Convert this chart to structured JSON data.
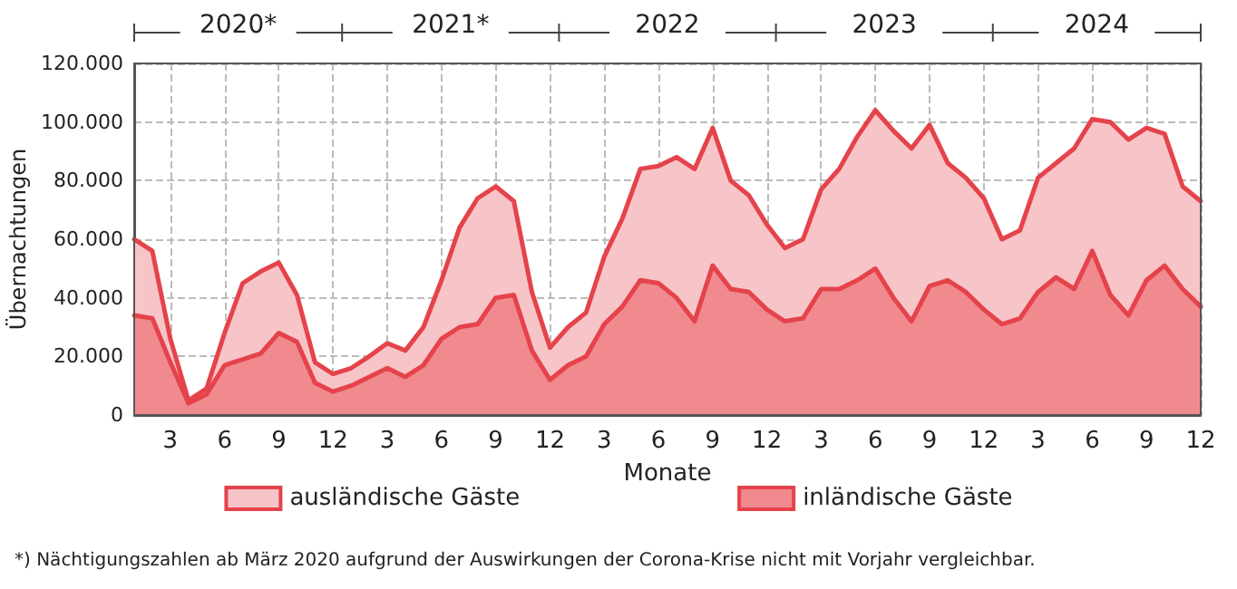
{
  "chart_data": {
    "type": "area",
    "ylabel": "Übernachtungen",
    "xlabel": "Monate",
    "categories": [
      null,
      null,
      "3",
      null,
      null,
      "6",
      null,
      null,
      "9",
      null,
      null,
      "12",
      null,
      null,
      "3",
      null,
      null,
      "6",
      null,
      null,
      "9",
      null,
      null,
      "12",
      null,
      null,
      "3",
      null,
      null,
      "6",
      null,
      null,
      "9",
      null,
      null,
      "12",
      null,
      null,
      "3",
      null,
      null,
      "6",
      null,
      null,
      "9",
      null,
      null,
      "12",
      null,
      null,
      "3",
      null,
      null,
      "6",
      null,
      null,
      "9",
      null,
      null,
      "12"
    ],
    "series": [
      {
        "name": "ausländische Gäste",
        "color": "#f7c5c8",
        "values": [
          60000,
          56000,
          26000,
          5000,
          9000,
          28000,
          45000,
          49000,
          52000,
          41000,
          18000,
          14000,
          16000,
          20000,
          24500,
          22000,
          30000,
          46000,
          64000,
          74000,
          78000,
          73000,
          42000,
          23000,
          30000,
          35000,
          54000,
          67000,
          84000,
          85000,
          88000,
          84000,
          98000,
          80000,
          75000,
          65000,
          57000,
          60000,
          77000,
          84000,
          95000,
          104000,
          97000,
          91000,
          99000,
          86000,
          81000,
          74000,
          60000,
          63000,
          81000,
          86000,
          91000,
          101000,
          100000,
          94000,
          98000,
          96000,
          78000,
          73000
        ]
      },
      {
        "name": "inländische Gäste",
        "color": "#f08a8e",
        "values": [
          34000,
          33000,
          18000,
          4000,
          7000,
          17000,
          19000,
          21000,
          28000,
          25000,
          11000,
          8000,
          10000,
          13000,
          16000,
          13000,
          17000,
          26000,
          30000,
          31000,
          40000,
          41000,
          22000,
          12000,
          17000,
          20000,
          31000,
          37000,
          46000,
          45000,
          40000,
          32000,
          51000,
          43000,
          42000,
          36000,
          32000,
          33000,
          43000,
          43000,
          46000,
          50000,
          40000,
          32000,
          44000,
          46000,
          42000,
          36000,
          31000,
          33000,
          42000,
          47000,
          43000,
          56000,
          41000,
          34000,
          46000,
          51000,
          43000,
          37000
        ]
      }
    ],
    "ylim": [
      0,
      120000
    ],
    "yticks": [
      0,
      {
        "value": 20000,
        "label": "20.000"
      },
      {
        "value": 40000,
        "label": "40.000"
      },
      {
        "value": 60000,
        "label": "60.000"
      },
      {
        "value": 80000,
        "label": "80.000"
      },
      {
        "value": 100000,
        "label": "100.000"
      },
      {
        "value": 120000,
        "label": "120.000"
      }
    ],
    "grid": true,
    "legend": "bottom",
    "marker": "none",
    "line_style": "solid",
    "annotations": [
      "2020*",
      "2021*",
      "2022",
      "2023",
      "2024",
      "*) Nächtigungszahlen ab März 2020 aufgrund der Auswirkungen der Corona-Krise nicht mit Vorjahr vergleichbar."
    ]
  }
}
